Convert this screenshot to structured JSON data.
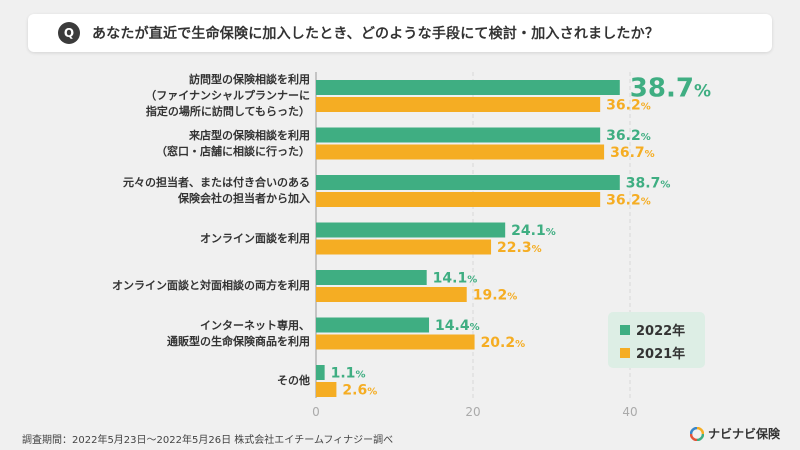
{
  "question_badge": "Q",
  "title": "あなたが直近で生命保険に加入したとき、どのような手段にて検討・加入されましたか？",
  "footnote": "調査期間：2022年5月23日〜2022年5月26日 株式会社エイチームフィナジー調べ",
  "logo_text": "ナビナビ保険",
  "colors": {
    "y2022": "#3fae82",
    "y2021": "#f5ad23",
    "axis": "#999999",
    "grid": "#dddddd"
  },
  "chart_data": {
    "type": "bar",
    "orientation": "horizontal",
    "title": "あなたが直近で生命保険に加入したとき、どのような手段にて検討・加入されましたか？",
    "categories": [
      [
        "訪問型の保険相談を利用",
        "（ファイナンシャルプランナーに",
        "指定の場所に訪問してもらった）"
      ],
      [
        "来店型の保険相談を利用",
        "（窓口・店舗に相談に行った）"
      ],
      [
        "元々の担当者、または付き合いのある",
        "保険会社の担当者から加入"
      ],
      [
        "オンライン面談を利用"
      ],
      [
        "オンライン面談と対面相談の両方を利用"
      ],
      [
        "インターネット専用、",
        "通販型の生命保険商品を利用"
      ],
      [
        "その他"
      ]
    ],
    "series": [
      {
        "name": "2022年",
        "values": [
          38.7,
          36.2,
          38.7,
          24.1,
          14.1,
          14.4,
          1.1
        ]
      },
      {
        "name": "2021年",
        "values": [
          36.2,
          36.7,
          36.2,
          22.3,
          19.2,
          20.2,
          2.6
        ]
      }
    ],
    "value_suffix": "%",
    "xlim": [
      0,
      40
    ],
    "xticks": [
      0,
      20,
      40
    ],
    "legend_position": "lower-right"
  }
}
